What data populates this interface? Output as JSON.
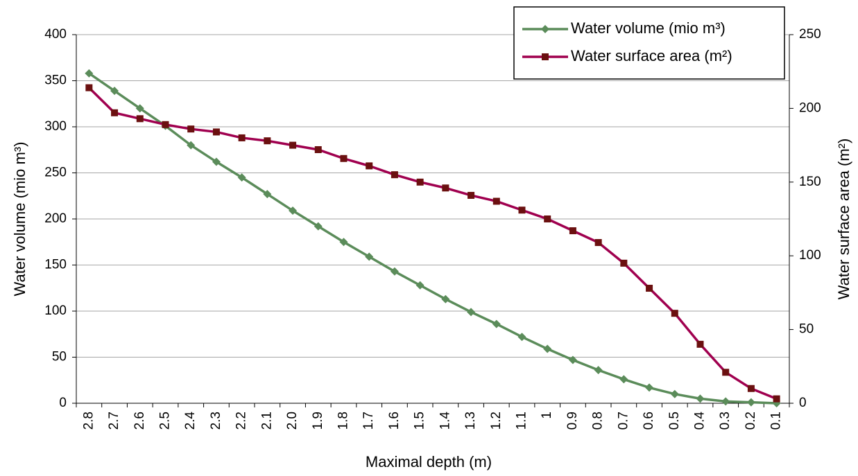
{
  "chart_data": {
    "type": "line",
    "x_label": "Maximal depth (m)",
    "y_label": "Water  volume (mio m³)",
    "y2_label": "Water surface area (m²)",
    "categories": [
      "2.8",
      "2.7",
      "2.6",
      "2.5",
      "2.4",
      "2.3",
      "2.2",
      "2.1",
      "2.0",
      "1.9",
      "1.8",
      "1.7",
      "1.6",
      "1.5",
      "1.4",
      "1.3",
      "1.2",
      "1.1",
      "1",
      "0.9",
      "0.8",
      "0.7",
      "0.6",
      "0.5",
      "0.4",
      "0.3",
      "0.2",
      "0.1"
    ],
    "series": [
      {
        "name": "Water volume (mio m³)",
        "color": "#5b8c5a",
        "marker": "diamond",
        "values": [
          358,
          339,
          320,
          301,
          280,
          262,
          245,
          227,
          209,
          192,
          175,
          159,
          143,
          128,
          113,
          99,
          86,
          72,
          59,
          47,
          36,
          26,
          17,
          10,
          5,
          2,
          1,
          0
        ]
      },
      {
        "name": "Water surface area (m²)",
        "color": "#a0004f",
        "marker_color": "#6b1010",
        "marker": "square",
        "axis": "y2",
        "values": [
          214,
          197,
          193,
          189,
          186,
          184,
          180,
          178,
          175,
          172,
          166,
          161,
          155,
          150,
          146,
          141,
          137,
          131,
          125,
          117,
          109,
          95,
          78,
          61,
          40,
          21,
          10,
          3
        ]
      }
    ],
    "ylim": [
      0,
      400
    ],
    "yticks": [
      0,
      50,
      100,
      150,
      200,
      250,
      300,
      350,
      400
    ],
    "y2lim": [
      0,
      250
    ],
    "y2ticks": [
      0,
      50,
      100,
      150,
      200,
      250
    ],
    "grid": true,
    "legend": "upper right"
  }
}
